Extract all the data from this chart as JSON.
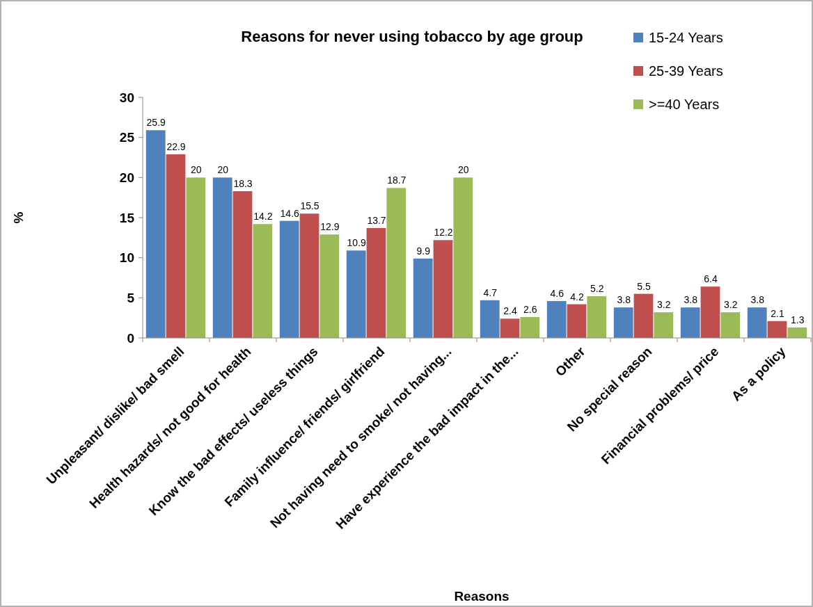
{
  "chart_data": {
    "type": "bar",
    "title": "Reasons for never using tobacco by age group",
    "xlabel": "Reasons",
    "ylabel": "%",
    "categories": [
      "Unpleasant/ dislike/ bad smell",
      "Health hazards/ not good for health",
      "Know the bad effects/ useless things",
      "Family influence/ friends/ girlfriend",
      "Not having need to smoke/ not having...",
      "Have experience the bad impact in the...",
      "Other",
      "No special reason",
      "Financial problems/ price",
      "As a policy"
    ],
    "series": [
      {
        "name": "15-24 Years",
        "color": "#4f81bd",
        "values": [
          25.9,
          20,
          14.6,
          10.9,
          9.9,
          4.7,
          4.6,
          3.8,
          3.8,
          3.8
        ]
      },
      {
        "name": "25-39 Years",
        "color": "#c0504d",
        "values": [
          22.9,
          18.3,
          15.5,
          13.7,
          12.2,
          2.4,
          4.2,
          5.5,
          6.4,
          2.1
        ]
      },
      {
        "name": ">=40 Years",
        "color": "#9bbb59",
        "values": [
          20,
          14.2,
          12.9,
          18.7,
          20,
          2.6,
          5.2,
          3.2,
          3.2,
          1.3
        ]
      }
    ],
    "ylim": [
      0,
      30
    ],
    "yticks": [
      0,
      5,
      10,
      15,
      20,
      25,
      30
    ],
    "data_labels": true,
    "legend": "top right",
    "grid": false
  }
}
